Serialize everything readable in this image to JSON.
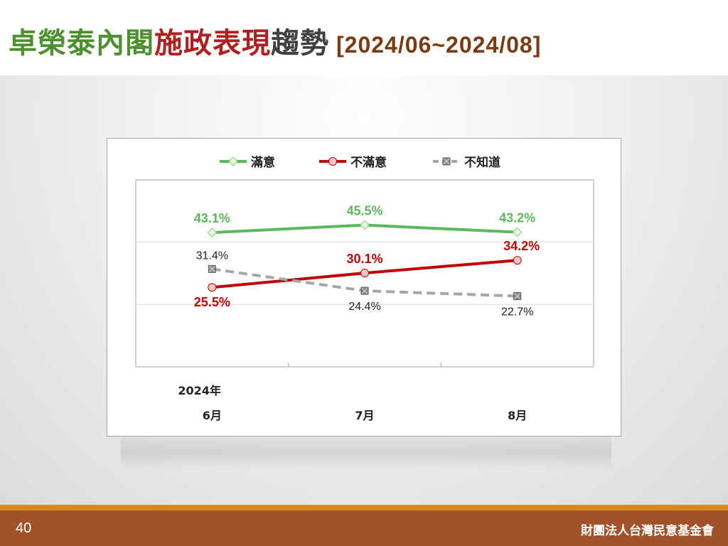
{
  "slide": {
    "title_parts": [
      {
        "text": "卓榮泰內閣",
        "color": "#4e8f2f"
      },
      {
        "text": "施政表現",
        "color": "#b01f1f"
      },
      {
        "text": "趨勢",
        "color": "#404040"
      }
    ],
    "title_range": "[2024/06~2024/08]",
    "page_number": "40",
    "organization": "財團法人台灣民意基金會"
  },
  "chart_data": {
    "type": "line",
    "categories": [
      "6月",
      "7月",
      "8月"
    ],
    "category_year_label": "2024年",
    "legend_position": "top",
    "grid": true,
    "ylim": [
      0,
      60
    ],
    "series": [
      {
        "name": "滿意",
        "color": "#5cb85c",
        "marker": "diamond",
        "dashed": false,
        "values": [
          43.1,
          45.5,
          43.2
        ],
        "labels": [
          "43.1%",
          "45.5%",
          "43.2%"
        ],
        "label_position": "above"
      },
      {
        "name": "不滿意",
        "color": "#c00000",
        "marker": "circle",
        "dashed": false,
        "values": [
          25.5,
          30.1,
          34.2
        ],
        "labels": [
          "25.5%",
          "30.1%",
          "34.2%"
        ],
        "label_position": [
          "below",
          "above",
          "above"
        ]
      },
      {
        "name": "不知道",
        "color": "#a6a6a6",
        "marker": "square-x",
        "dashed": true,
        "values": [
          31.4,
          24.4,
          22.7
        ],
        "labels": [
          "31.4%",
          "24.4%",
          "22.7%"
        ],
        "label_position": [
          "above",
          "below",
          "below"
        ]
      }
    ]
  }
}
